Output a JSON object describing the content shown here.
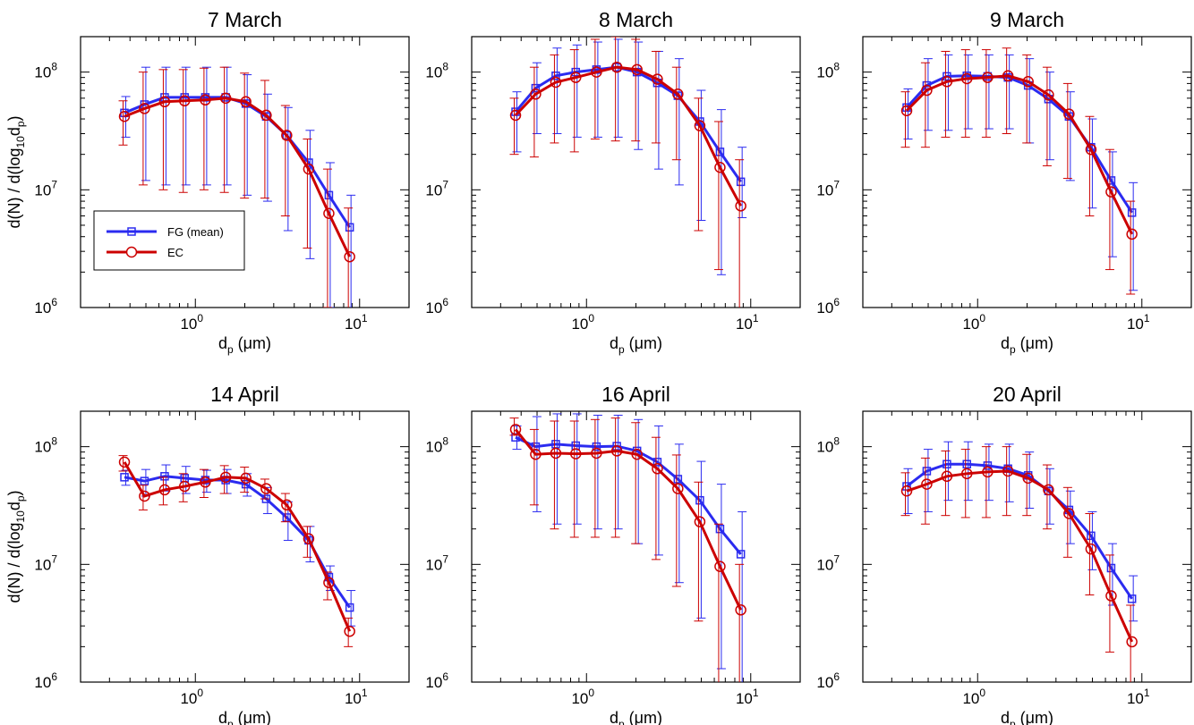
{
  "colors": {
    "fg": "#2b2bf0",
    "ec": "#cc0000",
    "axis": "#000000"
  },
  "legend": {
    "fg_label": "FG (mean)",
    "ec_label": "EC",
    "placement": "lower-left",
    "shown_in_panel": 0
  },
  "axes": {
    "xlabel": "d",
    "xlabel_sub": "p",
    "xlabel_unit": " (μm)",
    "ylabel_parts": [
      "d(N) / d(log",
      "10",
      "d",
      "p",
      ")"
    ],
    "x_scale": "log",
    "y_scale": "log",
    "xlim": [
      0.2,
      20
    ],
    "ylim": [
      1000000,
      200000000
    ],
    "xticks": [
      "10",
      "10"
    ],
    "xtick_exp": [
      "0",
      "1"
    ],
    "yticks": [
      "10",
      "10",
      "10"
    ],
    "ytick_exp": [
      "6",
      "7",
      "8"
    ]
  },
  "chart_data": [
    {
      "type": "line",
      "title": "7 March",
      "x": [
        0.37,
        0.49,
        0.65,
        0.86,
        1.15,
        1.53,
        2.03,
        2.7,
        3.6,
        4.9,
        6.5,
        8.7
      ],
      "series": [
        {
          "name": "FG (mean)",
          "values": [
            45000000,
            53000000,
            61000000,
            61000000,
            61000000,
            61000000,
            54000000,
            42000000,
            29000000,
            17000000,
            9000000,
            4800000
          ],
          "err_lo": [
            28000000,
            12000000,
            11000000,
            11000000,
            11000000,
            11000000,
            9000000,
            8000000,
            4500000,
            2600000,
            1000000,
            0
          ],
          "err_hi": [
            62000000,
            110000000,
            110000000,
            110000000,
            110000000,
            110000000,
            95000000,
            65000000,
            50000000,
            32000000,
            17000000,
            9000000
          ]
        },
        {
          "name": "EC",
          "values": [
            42000000,
            49000000,
            56000000,
            57000000,
            58000000,
            60000000,
            56000000,
            43000000,
            29000000,
            15000000,
            6300000,
            2700000
          ],
          "err_lo": [
            24000000,
            11000000,
            10000000,
            9500000,
            10000000,
            9500000,
            8500000,
            8500000,
            6000000,
            3200000,
            1000000,
            0
          ],
          "err_hi": [
            57000000,
            100000000,
            105000000,
            105000000,
            108000000,
            110000000,
            98000000,
            85000000,
            52000000,
            27000000,
            15000000,
            7000000
          ]
        }
      ]
    },
    {
      "type": "line",
      "title": "8 March",
      "x": [
        0.37,
        0.49,
        0.65,
        0.86,
        1.15,
        1.53,
        2.03,
        2.7,
        3.6,
        4.9,
        6.5,
        8.7
      ],
      "series": [
        {
          "name": "FG (mean)",
          "values": [
            46000000,
            73000000,
            93000000,
            100000000,
            105000000,
            110000000,
            100000000,
            81000000,
            63000000,
            38000000,
            21000000,
            11700000
          ],
          "err_lo": [
            21000000,
            30000000,
            30000000,
            28000000,
            28000000,
            28000000,
            22000000,
            15000000,
            11000000,
            5500000,
            1900000,
            5800000
          ],
          "err_hi": [
            68000000,
            120000000,
            160000000,
            170000000,
            180000000,
            190000000,
            180000000,
            150000000,
            130000000,
            70000000,
            48000000,
            23000000
          ]
        },
        {
          "name": "EC",
          "values": [
            43000000,
            65000000,
            82000000,
            90000000,
            100000000,
            110000000,
            105000000,
            87000000,
            65000000,
            35000000,
            15500000,
            7300000
          ],
          "err_lo": [
            20000000,
            19000000,
            25000000,
            21000000,
            27000000,
            26000000,
            26000000,
            25000000,
            18000000,
            4500000,
            2100000,
            0
          ],
          "err_hi": [
            60000000,
            110000000,
            140000000,
            155000000,
            190000000,
            200000000,
            190000000,
            150000000,
            110000000,
            60000000,
            38000000,
            18000000
          ]
        }
      ]
    },
    {
      "type": "line",
      "title": "9 March",
      "x": [
        0.37,
        0.49,
        0.65,
        0.86,
        1.15,
        1.53,
        2.03,
        2.7,
        3.6,
        4.9,
        6.5,
        8.7
      ],
      "series": [
        {
          "name": "FG (mean)",
          "values": [
            50000000,
            77000000,
            92000000,
            93000000,
            92000000,
            90000000,
            77000000,
            59000000,
            42000000,
            23000000,
            12000000,
            6400000
          ],
          "err_lo": [
            27000000,
            32000000,
            32000000,
            33000000,
            33000000,
            33000000,
            25000000,
            18000000,
            12000000,
            7000000,
            2700000,
            1400000
          ],
          "err_hi": [
            72000000,
            130000000,
            140000000,
            140000000,
            140000000,
            140000000,
            130000000,
            100000000,
            68000000,
            40000000,
            21000000,
            11500000
          ]
        },
        {
          "name": "EC",
          "values": [
            47000000,
            70000000,
            83000000,
            88000000,
            90000000,
            93000000,
            83000000,
            64000000,
            44000000,
            22000000,
            9600000,
            4200000
          ],
          "err_lo": [
            23000000,
            23000000,
            28000000,
            28000000,
            28000000,
            30000000,
            25000000,
            16000000,
            12500000,
            6000000,
            2100000,
            1300000
          ],
          "err_hi": [
            68000000,
            120000000,
            150000000,
            155000000,
            155000000,
            160000000,
            140000000,
            110000000,
            80000000,
            42000000,
            22000000,
            8000000
          ]
        }
      ]
    },
    {
      "type": "line",
      "title": "14 April",
      "x": [
        0.37,
        0.49,
        0.65,
        0.86,
        1.15,
        1.53,
        2.03,
        2.7,
        3.6,
        4.9,
        6.5,
        8.7
      ],
      "series": [
        {
          "name": "FG (mean)",
          "values": [
            55000000,
            51000000,
            56000000,
            54000000,
            52000000,
            52000000,
            48000000,
            36000000,
            25000000,
            16000000,
            7800000,
            4300000
          ],
          "err_lo": [
            47000000,
            38000000,
            42000000,
            40000000,
            41000000,
            40000000,
            38000000,
            27000000,
            16000000,
            10500000,
            6000000,
            3000000
          ],
          "err_hi": [
            63000000,
            64000000,
            70000000,
            68000000,
            63000000,
            64000000,
            59000000,
            45000000,
            34000000,
            21000000,
            9700000,
            6000000
          ]
        },
        {
          "name": "EC",
          "values": [
            74000000,
            38000000,
            43000000,
            46000000,
            50000000,
            55000000,
            54000000,
            44000000,
            32000000,
            16500000,
            7000000,
            2700000
          ],
          "err_lo": [
            62000000,
            29000000,
            32000000,
            34000000,
            37000000,
            40000000,
            41000000,
            36000000,
            23000000,
            11500000,
            5000000,
            2000000
          ],
          "err_hi": [
            84000000,
            47000000,
            55000000,
            59000000,
            64000000,
            69000000,
            67000000,
            53000000,
            40000000,
            21000000,
            8600000,
            3500000
          ]
        }
      ]
    },
    {
      "type": "line",
      "title": "16 April",
      "x": [
        0.37,
        0.49,
        0.65,
        0.86,
        1.15,
        1.53,
        2.03,
        2.7,
        3.6,
        4.9,
        6.5,
        8.7
      ],
      "series": [
        {
          "name": "FG (mean)",
          "values": [
            120000000,
            100000000,
            105000000,
            102000000,
            100000000,
            101000000,
            92000000,
            74000000,
            53000000,
            35000000,
            20000000,
            12200000
          ],
          "err_lo": [
            95000000,
            28000000,
            22000000,
            22000000,
            20000000,
            20000000,
            15000000,
            12000000,
            7000000,
            3500000,
            1300000,
            0
          ],
          "err_hi": [
            150000000,
            180000000,
            190000000,
            190000000,
            185000000,
            185000000,
            170000000,
            150000000,
            105000000,
            75000000,
            48000000,
            28000000
          ]
        },
        {
          "name": "EC",
          "values": [
            140000000,
            86000000,
            88000000,
            87000000,
            88000000,
            92000000,
            86000000,
            65000000,
            44000000,
            23000000,
            9600000,
            4100000
          ],
          "err_lo": [
            125000000,
            32000000,
            20000000,
            17000000,
            17000000,
            17000000,
            15000000,
            11000000,
            6500000,
            3300000,
            0,
            0
          ],
          "err_hi": [
            175000000,
            140000000,
            165000000,
            165000000,
            170000000,
            175000000,
            160000000,
            120000000,
            85000000,
            50000000,
            22000000,
            10000000
          ]
        }
      ]
    },
    {
      "type": "line",
      "title": "20 April",
      "x": [
        0.37,
        0.49,
        0.65,
        0.86,
        1.15,
        1.53,
        2.03,
        2.7,
        3.6,
        4.9,
        6.5,
        8.7
      ],
      "series": [
        {
          "name": "FG (mean)",
          "values": [
            46000000,
            62000000,
            71000000,
            71000000,
            69000000,
            65000000,
            57000000,
            42000000,
            29000000,
            17500000,
            9300000,
            5100000
          ],
          "err_lo": [
            27000000,
            28000000,
            35000000,
            35000000,
            35000000,
            34000000,
            30000000,
            22000000,
            15000000,
            9000000,
            4500000,
            3300000
          ],
          "err_hi": [
            65000000,
            95000000,
            110000000,
            110000000,
            105000000,
            105000000,
            90000000,
            65000000,
            42000000,
            28000000,
            15000000,
            8000000
          ]
        },
        {
          "name": "EC",
          "values": [
            42000000,
            48000000,
            56000000,
            59000000,
            61000000,
            62000000,
            54000000,
            43000000,
            27000000,
            13500000,
            5400000,
            2200000
          ],
          "err_lo": [
            26000000,
            22000000,
            26000000,
            25000000,
            25000000,
            26000000,
            26000000,
            20000000,
            11500000,
            5500000,
            1800000,
            0
          ],
          "err_hi": [
            60000000,
            80000000,
            92000000,
            95000000,
            100000000,
            100000000,
            86000000,
            70000000,
            45000000,
            27000000,
            12000000,
            4500000
          ]
        }
      ]
    }
  ]
}
